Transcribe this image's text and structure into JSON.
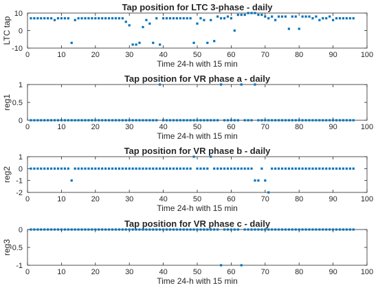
{
  "chart_data": [
    {
      "type": "scatter",
      "title": "Tap position for LTC 3-phase - daily",
      "xlabel": "Time 24-h with 15 min",
      "ylabel": "LTC tap",
      "xlim": [
        0,
        100
      ],
      "ylim": [
        -10,
        10
      ],
      "xticks": [
        0,
        10,
        20,
        30,
        40,
        50,
        60,
        70,
        80,
        90,
        100
      ],
      "yticks": [
        -10,
        0,
        10
      ],
      "color": "#0072bd",
      "grid": false,
      "x": [
        1,
        2,
        3,
        4,
        5,
        6,
        7,
        8,
        9,
        10,
        11,
        12,
        13,
        14,
        15,
        16,
        17,
        18,
        19,
        20,
        21,
        22,
        23,
        24,
        25,
        26,
        27,
        28,
        29,
        30,
        31,
        32,
        33,
        34,
        35,
        36,
        37,
        38,
        39,
        40,
        41,
        42,
        43,
        44,
        45,
        46,
        47,
        48,
        49,
        50,
        51,
        52,
        53,
        54,
        55,
        56,
        57,
        58,
        59,
        60,
        61,
        62,
        63,
        64,
        65,
        66,
        67,
        68,
        69,
        70,
        71,
        72,
        73,
        74,
        75,
        76,
        77,
        78,
        79,
        80,
        81,
        82,
        83,
        84,
        85,
        86,
        87,
        88,
        89,
        90,
        91,
        92,
        93,
        94,
        95,
        96
      ],
      "y": [
        7,
        7,
        7,
        7,
        7,
        7,
        7,
        6,
        7,
        7,
        7,
        7,
        -7,
        6,
        7,
        7,
        7,
        7,
        7,
        7,
        7,
        7,
        7,
        7,
        7,
        7,
        7,
        7,
        5,
        3,
        -8,
        -8,
        -7,
        2,
        6,
        4,
        -7,
        7,
        -8,
        7,
        7,
        7,
        7,
        7,
        7,
        7,
        7,
        7,
        -7,
        4,
        7,
        6,
        -7,
        6,
        -6,
        8,
        7,
        7,
        8,
        7,
        0,
        9,
        9,
        9,
        10,
        10,
        10,
        9,
        9,
        8,
        7,
        8,
        6,
        8,
        8,
        8,
        1,
        8,
        8,
        1,
        8,
        8,
        8,
        7,
        8,
        6,
        7,
        7,
        8,
        6,
        7,
        7,
        7,
        7,
        7,
        7
      ]
    },
    {
      "type": "scatter",
      "title": "Tap position for VR phase a - daily",
      "xlabel": "Time 24-h with 15 min",
      "ylabel": "reg1",
      "xlim": [
        0,
        100
      ],
      "ylim": [
        0,
        1
      ],
      "xticks": [
        0,
        10,
        20,
        30,
        40,
        50,
        60,
        70,
        80,
        90,
        100
      ],
      "yticks": [
        0,
        0.5,
        1
      ],
      "color": "#0072bd",
      "grid": false,
      "x": [
        1,
        2,
        3,
        4,
        5,
        6,
        7,
        8,
        9,
        10,
        11,
        12,
        13,
        14,
        15,
        16,
        17,
        18,
        19,
        20,
        21,
        22,
        23,
        24,
        25,
        26,
        27,
        28,
        29,
        30,
        31,
        32,
        33,
        34,
        35,
        36,
        37,
        38,
        39,
        40,
        41,
        42,
        43,
        44,
        45,
        46,
        47,
        48,
        49,
        50,
        51,
        52,
        53,
        54,
        55,
        56,
        57,
        58,
        59,
        60,
        61,
        62,
        63,
        64,
        65,
        66,
        67,
        68,
        69,
        70,
        71,
        72,
        73,
        74,
        75,
        76,
        77,
        78,
        79,
        80,
        81,
        82,
        83,
        84,
        85,
        86,
        87,
        88,
        89,
        90,
        91,
        92,
        93,
        94,
        95,
        96
      ],
      "y": [
        0,
        0,
        0,
        0,
        0,
        0,
        0,
        0,
        0,
        0,
        0,
        0,
        0,
        0,
        0,
        0,
        0,
        0,
        0,
        0,
        0,
        0,
        0,
        0,
        0,
        0,
        0,
        0,
        0,
        0,
        0,
        0,
        0,
        0,
        0,
        0,
        0,
        0,
        1,
        0,
        0,
        0,
        0,
        0,
        0,
        0,
        0,
        0,
        0,
        0,
        0,
        0,
        0,
        0,
        0,
        0,
        1,
        0,
        0,
        0,
        0,
        0,
        1,
        0,
        0,
        0,
        1,
        0,
        0,
        0,
        0,
        0,
        0,
        0,
        0,
        0,
        0,
        0,
        0,
        0,
        0,
        0,
        0,
        0,
        0,
        0,
        0,
        0,
        0,
        0,
        0,
        0,
        0,
        0,
        0,
        0
      ]
    },
    {
      "type": "scatter",
      "title": "Tap position for VR phase b - daily",
      "xlabel": "Time 24-h with 15 min",
      "ylabel": "reg2",
      "xlim": [
        0,
        100
      ],
      "ylim": [
        -2,
        1
      ],
      "xticks": [
        0,
        10,
        20,
        30,
        40,
        50,
        60,
        70,
        80,
        90,
        100
      ],
      "yticks": [
        -2,
        -1,
        0,
        1
      ],
      "color": "#0072bd",
      "grid": false,
      "x": [
        1,
        2,
        3,
        4,
        5,
        6,
        7,
        8,
        9,
        10,
        11,
        12,
        13,
        14,
        15,
        16,
        17,
        18,
        19,
        20,
        21,
        22,
        23,
        24,
        25,
        26,
        27,
        28,
        29,
        30,
        31,
        32,
        33,
        34,
        35,
        36,
        37,
        38,
        39,
        40,
        41,
        42,
        43,
        44,
        45,
        46,
        47,
        48,
        49,
        50,
        51,
        52,
        53,
        54,
        55,
        56,
        57,
        58,
        59,
        60,
        61,
        62,
        63,
        64,
        65,
        66,
        67,
        68,
        69,
        70,
        71,
        72,
        73,
        74,
        75,
        76,
        77,
        78,
        79,
        80,
        81,
        82,
        83,
        84,
        85,
        86,
        87,
        88,
        89,
        90,
        91,
        92,
        93,
        94,
        95,
        96
      ],
      "y": [
        0,
        0,
        0,
        0,
        0,
        0,
        0,
        0,
        0,
        0,
        0,
        0,
        -1,
        0,
        0,
        0,
        0,
        0,
        0,
        0,
        0,
        0,
        0,
        0,
        0,
        0,
        0,
        0,
        0,
        0,
        0,
        0,
        0,
        0,
        0,
        0,
        0,
        0,
        0,
        0,
        0,
        0,
        0,
        0,
        0,
        0,
        0,
        0,
        1,
        0,
        0,
        0,
        0,
        1,
        0,
        0,
        0,
        0,
        0,
        0,
        0,
        0,
        0,
        0,
        0,
        0,
        -1,
        -1,
        0,
        -1,
        -2,
        0,
        0,
        0,
        0,
        0,
        0,
        0,
        0,
        0,
        0,
        0,
        0,
        0,
        0,
        0,
        0,
        0,
        0,
        0,
        0,
        0,
        0,
        0,
        0,
        0
      ]
    },
    {
      "type": "scatter",
      "title": "Tap position for VR phase c - daily",
      "xlabel": "Time 24-h with 15 min",
      "ylabel": "reg3",
      "xlim": [
        0,
        100
      ],
      "ylim": [
        -1,
        0
      ],
      "xticks": [
        0,
        10,
        20,
        30,
        40,
        50,
        60,
        70,
        80,
        90,
        100
      ],
      "yticks": [
        -1,
        -0.5,
        0
      ],
      "color": "#0072bd",
      "grid": false,
      "x": [
        1,
        2,
        3,
        4,
        5,
        6,
        7,
        8,
        9,
        10,
        11,
        12,
        13,
        14,
        15,
        16,
        17,
        18,
        19,
        20,
        21,
        22,
        23,
        24,
        25,
        26,
        27,
        28,
        29,
        30,
        31,
        32,
        33,
        34,
        35,
        36,
        37,
        38,
        39,
        40,
        41,
        42,
        43,
        44,
        45,
        46,
        47,
        48,
        49,
        50,
        51,
        52,
        53,
        54,
        55,
        56,
        57,
        58,
        59,
        60,
        61,
        62,
        63,
        64,
        65,
        66,
        67,
        68,
        69,
        70,
        71,
        72,
        73,
        74,
        75,
        76,
        77,
        78,
        79,
        80,
        81,
        82,
        83,
        84,
        85,
        86,
        87,
        88,
        89,
        90,
        91,
        92,
        93,
        94,
        95,
        96
      ],
      "y": [
        0,
        0,
        0,
        0,
        0,
        0,
        0,
        0,
        0,
        0,
        0,
        0,
        0,
        0,
        0,
        0,
        0,
        0,
        0,
        0,
        0,
        0,
        0,
        0,
        0,
        0,
        0,
        0,
        0,
        0,
        0,
        0,
        0,
        0,
        0,
        0,
        0,
        0,
        0,
        0,
        0,
        0,
        0,
        0,
        0,
        0,
        0,
        0,
        0,
        0,
        0,
        0,
        0,
        0,
        0,
        0,
        -1,
        0,
        0,
        0,
        0,
        0,
        -1,
        0,
        0,
        0,
        0,
        0,
        0,
        0,
        0,
        0,
        0,
        0,
        0,
        0,
        0,
        0,
        0,
        0,
        0,
        0,
        0,
        0,
        0,
        0,
        0,
        0,
        0,
        0,
        0,
        0,
        0,
        0,
        0,
        0
      ]
    }
  ]
}
